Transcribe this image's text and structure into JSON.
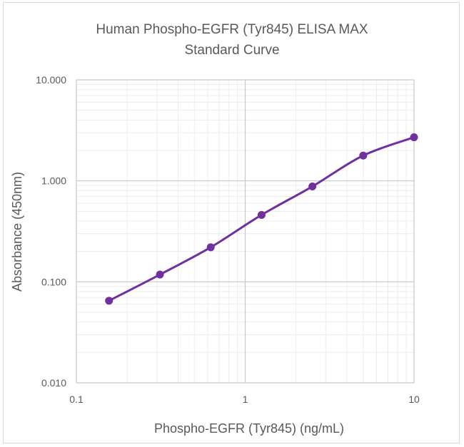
{
  "chart_data": {
    "type": "line",
    "title": "Human Phospho-EGFR (Tyr845) ELISA MAX",
    "subtitle": "Standard Curve",
    "xlabel": "Phospho-EGFR (Tyr845) (ng/mL)",
    "ylabel": "Absorbance (450nm)",
    "x_scale": "log",
    "y_scale": "log",
    "xlim": [
      0.1,
      10
    ],
    "ylim": [
      0.01,
      10
    ],
    "x_ticks": [
      "0.1",
      "1",
      "10"
    ],
    "y_ticks": [
      "0.010",
      "0.100",
      "1.000",
      "10.000"
    ],
    "grid": true,
    "legend": "none",
    "series": [
      {
        "color": "#7030a0",
        "x": [
          0.156,
          0.3125,
          0.625,
          1.25,
          2.5,
          5,
          10
        ],
        "y": [
          0.065,
          0.118,
          0.22,
          0.46,
          0.88,
          1.78,
          2.7
        ]
      }
    ]
  }
}
